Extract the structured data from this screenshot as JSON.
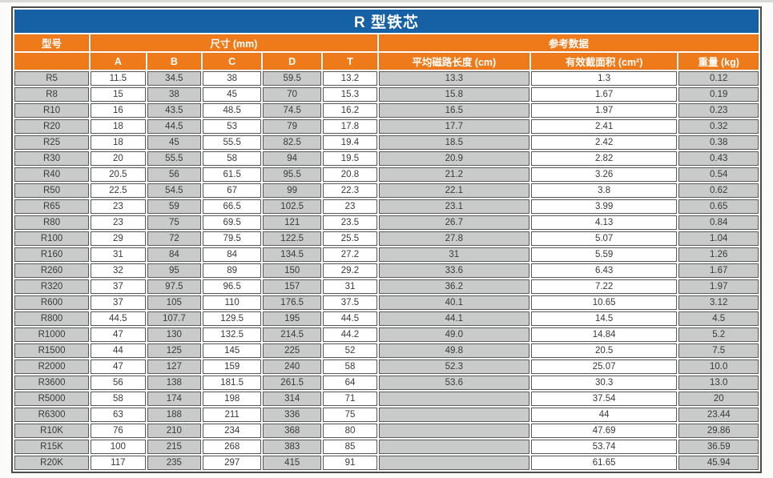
{
  "style": {
    "title_bg": "#1660a5",
    "header_bg": "#ef7a1a",
    "shaded_cell_bg": "#c9caca",
    "white_cell_bg": "#ffffff",
    "grid_border": "#4c4c4c",
    "header_text": "#ffffff",
    "cell_text": "#3a3a3a"
  },
  "chart_data": {
    "type": "table",
    "title": "R 型铁芯",
    "legend_position": "none",
    "grid": true,
    "header": {
      "model_col": "型号",
      "groups": [
        {
          "label": "尺寸 (mm)",
          "span": 5
        },
        {
          "label": "参考数据",
          "span": 3
        }
      ],
      "sub_columns": [
        "A",
        "B",
        "C",
        "D",
        "T",
        "平均磁路长度 (cm)",
        "有效截面积 (cm²)",
        "重量 (kg)"
      ]
    },
    "rows": [
      [
        "R5",
        "11.5",
        "34.5",
        "38",
        "59.5",
        "13.2",
        "13.3",
        "1.3",
        "0.12"
      ],
      [
        "R8",
        "15",
        "38",
        "45",
        "70",
        "15.3",
        "15.8",
        "1.67",
        "0.19"
      ],
      [
        "R10",
        "16",
        "43.5",
        "48.5",
        "74.5",
        "16.2",
        "16.5",
        "1.97",
        "0.23"
      ],
      [
        "R20",
        "18",
        "44.5",
        "53",
        "79",
        "17.8",
        "17.7",
        "2.41",
        "0.32"
      ],
      [
        "R25",
        "18",
        "45",
        "55.5",
        "82.5",
        "19.4",
        "18.5",
        "2.42",
        "0.38"
      ],
      [
        "R30",
        "20",
        "55.5",
        "58",
        "94",
        "19.5",
        "20.9",
        "2.82",
        "0.43"
      ],
      [
        "R40",
        "20.5",
        "56",
        "61.5",
        "95.5",
        "20.8",
        "21.2",
        "3.26",
        "0.54"
      ],
      [
        "R50",
        "22.5",
        "54.5",
        "67",
        "99",
        "22.3",
        "22.1",
        "3.8",
        "0.62"
      ],
      [
        "R65",
        "23",
        "59",
        "66.5",
        "102.5",
        "23",
        "23.1",
        "3.99",
        "0.65"
      ],
      [
        "R80",
        "23",
        "75",
        "69.5",
        "121",
        "23.5",
        "26.7",
        "4.13",
        "0.84"
      ],
      [
        "R100",
        "29",
        "72",
        "79.5",
        "122.5",
        "25.5",
        "27.8",
        "5.07",
        "1.04"
      ],
      [
        "R160",
        "31",
        "84",
        "84",
        "134.5",
        "27.2",
        "31",
        "5.59",
        "1.26"
      ],
      [
        "R260",
        "32",
        "95",
        "89",
        "150",
        "29.2",
        "33.6",
        "6.43",
        "1.67"
      ],
      [
        "R320",
        "37",
        "97.5",
        "96.5",
        "157",
        "31",
        "36.2",
        "7.22",
        "1.97"
      ],
      [
        "R600",
        "37",
        "105",
        "110",
        "176.5",
        "37.5",
        "40.1",
        "10.65",
        "3.12"
      ],
      [
        "R800",
        "44.5",
        "107.7",
        "129.5",
        "195",
        "44.5",
        "44.1",
        "14.5",
        "4.5"
      ],
      [
        "R1000",
        "47",
        "130",
        "132.5",
        "214.5",
        "44.2",
        "49.0",
        "14.84",
        "5.2"
      ],
      [
        "R1500",
        "44",
        "125",
        "145",
        "225",
        "52",
        "49.8",
        "20.5",
        "7.5"
      ],
      [
        "R2000",
        "47",
        "127",
        "159",
        "240",
        "58",
        "52.3",
        "25.07",
        "10.0"
      ],
      [
        "R3600",
        "56",
        "138",
        "181.5",
        "261.5",
        "64",
        "53.6",
        "30.3",
        "13.0"
      ],
      [
        "R5000",
        "58",
        "174",
        "198",
        "314",
        "71",
        "",
        "37.54",
        "20"
      ],
      [
        "R6300",
        "63",
        "188",
        "211",
        "336",
        "75",
        "",
        "44",
        "23.44"
      ],
      [
        "R10K",
        "76",
        "210",
        "234",
        "368",
        "80",
        "",
        "47.69",
        "29.86"
      ],
      [
        "R15K",
        "100",
        "215",
        "268",
        "383",
        "85",
        "",
        "53.74",
        "36.59"
      ],
      [
        "R20K",
        "117",
        "235",
        "297",
        "415",
        "91",
        "",
        "61.65",
        "45.94"
      ]
    ]
  }
}
